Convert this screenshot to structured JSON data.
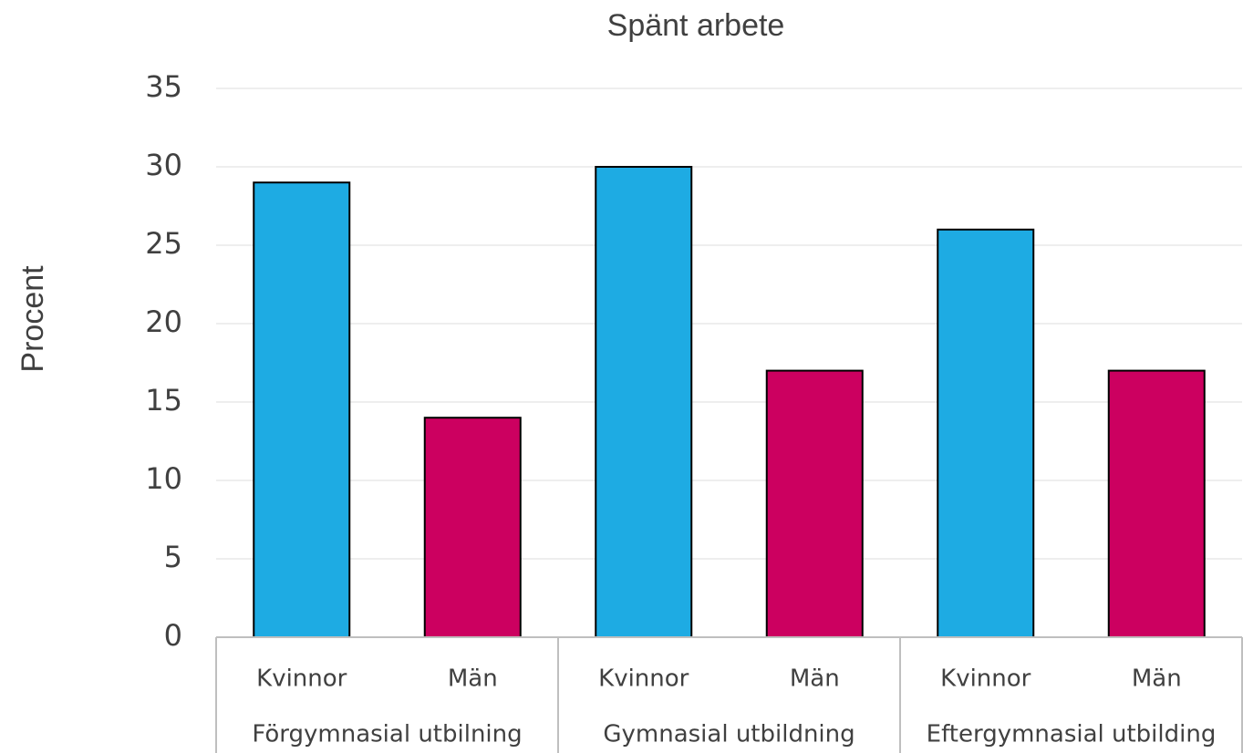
{
  "chart_data": {
    "type": "bar",
    "title": "Spänt arbete",
    "y_label": "Procent",
    "groups": [
      {
        "name": "Förgymnasial utbilning",
        "categories": [
          "Kvinnor",
          "Män"
        ],
        "values": [
          29,
          14
        ]
      },
      {
        "name": "Gymnasial utbildning",
        "categories": [
          "Kvinnor",
          "Män"
        ],
        "values": [
          30,
          17
        ]
      },
      {
        "name": "Eftergymnasial utbilding",
        "categories": [
          "Kvinnor",
          "Män"
        ],
        "values": [
          26,
          17
        ]
      }
    ],
    "colors": [
      "#1eabe3",
      "#cc0060"
    ],
    "ylim": [
      0,
      35
    ],
    "yticks": [
      0,
      5,
      10,
      15,
      20,
      25,
      30,
      35
    ],
    "grid": true
  }
}
